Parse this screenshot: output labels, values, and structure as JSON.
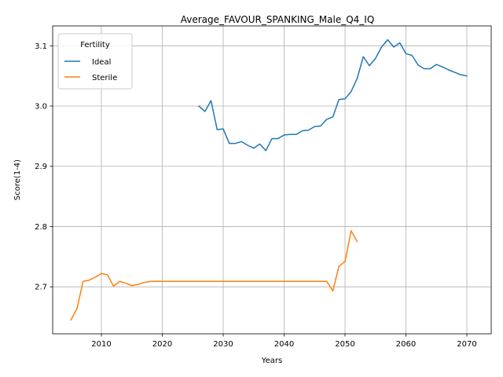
{
  "chart_data": {
    "type": "line",
    "title": "Average_FAVOUR_SPANKING_Male_Q4_IQ",
    "xlabel": "Years",
    "ylabel": "Score(1-4)",
    "xlim": [
      2002,
      2074
    ],
    "ylim": [
      2.622,
      3.133
    ],
    "xticks": [
      2010,
      2020,
      2030,
      2040,
      2050,
      2060,
      2070
    ],
    "yticks": [
      2.7,
      2.8,
      2.9,
      3.0,
      3.1
    ],
    "grid": true,
    "legend": {
      "title": "Fertility",
      "placement": "upper-left"
    },
    "series": [
      {
        "name": "Ideal",
        "color": "#1f77b4",
        "x": [
          2026,
          2027,
          2028,
          2029,
          2030,
          2031,
          2032,
          2033,
          2034,
          2035,
          2036,
          2037,
          2038,
          2039,
          2040,
          2041,
          2042,
          2043,
          2044,
          2045,
          2046,
          2047,
          2048,
          2049,
          2050,
          2051,
          2052,
          2053,
          2054,
          2055,
          2056,
          2057,
          2058,
          2059,
          2060,
          2061,
          2062,
          2063,
          2064,
          2065,
          2066,
          2067,
          2068,
          2069,
          2070
        ],
        "y": [
          3.0,
          2.991,
          3.009,
          2.961,
          2.962,
          2.938,
          2.938,
          2.941,
          2.935,
          2.93,
          2.937,
          2.926,
          2.946,
          2.946,
          2.952,
          2.953,
          2.953,
          2.959,
          2.96,
          2.966,
          2.967,
          2.978,
          2.982,
          3.011,
          3.012,
          3.024,
          3.046,
          3.082,
          3.067,
          3.079,
          3.098,
          3.11,
          3.098,
          3.105,
          3.087,
          3.084,
          3.068,
          3.062,
          3.062,
          3.069,
          3.065,
          3.06,
          3.056,
          3.052,
          3.05
        ]
      },
      {
        "name": "Sterile",
        "color": "#ff7f0e",
        "x": [
          2005,
          2006,
          2007,
          2008,
          2009,
          2010,
          2011,
          2012,
          2013,
          2014,
          2015,
          2016,
          2017,
          2018,
          2019,
          2020,
          2021,
          2022,
          2023,
          2024,
          2025,
          2026,
          2027,
          2028,
          2029,
          2030,
          2031,
          2032,
          2033,
          2034,
          2035,
          2036,
          2037,
          2038,
          2039,
          2040,
          2041,
          2042,
          2043,
          2044,
          2045,
          2046,
          2047,
          2048,
          2049,
          2050,
          2051,
          2052
        ],
        "y": [
          2.645,
          2.664,
          2.709,
          2.711,
          2.716,
          2.722,
          2.72,
          2.701,
          2.709,
          2.706,
          2.702,
          2.704,
          2.707,
          2.709,
          2.709,
          2.709,
          2.709,
          2.709,
          2.709,
          2.709,
          2.709,
          2.709,
          2.709,
          2.709,
          2.709,
          2.709,
          2.709,
          2.709,
          2.709,
          2.709,
          2.709,
          2.709,
          2.709,
          2.709,
          2.709,
          2.709,
          2.709,
          2.709,
          2.709,
          2.709,
          2.709,
          2.709,
          2.709,
          2.693,
          2.734,
          2.742,
          2.793,
          2.775
        ]
      }
    ]
  }
}
